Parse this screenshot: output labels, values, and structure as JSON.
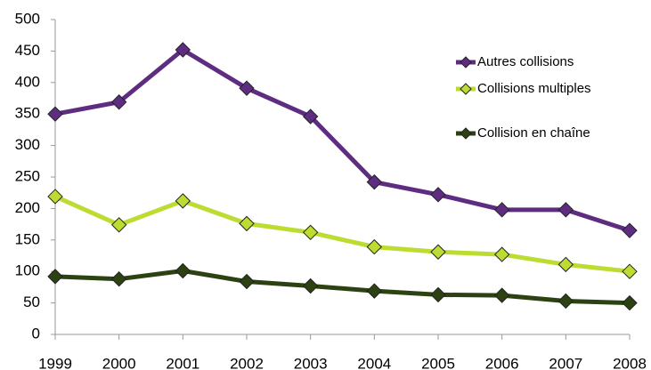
{
  "chart_data": {
    "type": "line",
    "x": [
      "1999",
      "2000",
      "2001",
      "2002",
      "2003",
      "2004",
      "2005",
      "2006",
      "2007",
      "2008"
    ],
    "series": [
      {
        "name": "Autres collisions",
        "color": "#5e2d82",
        "values": [
          350,
          369,
          452,
          391,
          346,
          242,
          222,
          198,
          198,
          165
        ]
      },
      {
        "name": "Collisions multiples",
        "color": "#bddc32",
        "values": [
          219,
          174,
          212,
          176,
          162,
          139,
          131,
          127,
          111,
          100
        ]
      },
      {
        "name": "Collision en chaîne",
        "color": "#2c4212",
        "values": [
          92,
          88,
          101,
          84,
          77,
          69,
          63,
          62,
          53,
          50
        ]
      }
    ],
    "ylim": [
      0,
      500
    ],
    "yticks": [
      0,
      50,
      100,
      150,
      200,
      250,
      300,
      350,
      400,
      450,
      500
    ],
    "grid": false,
    "legend": "right"
  }
}
